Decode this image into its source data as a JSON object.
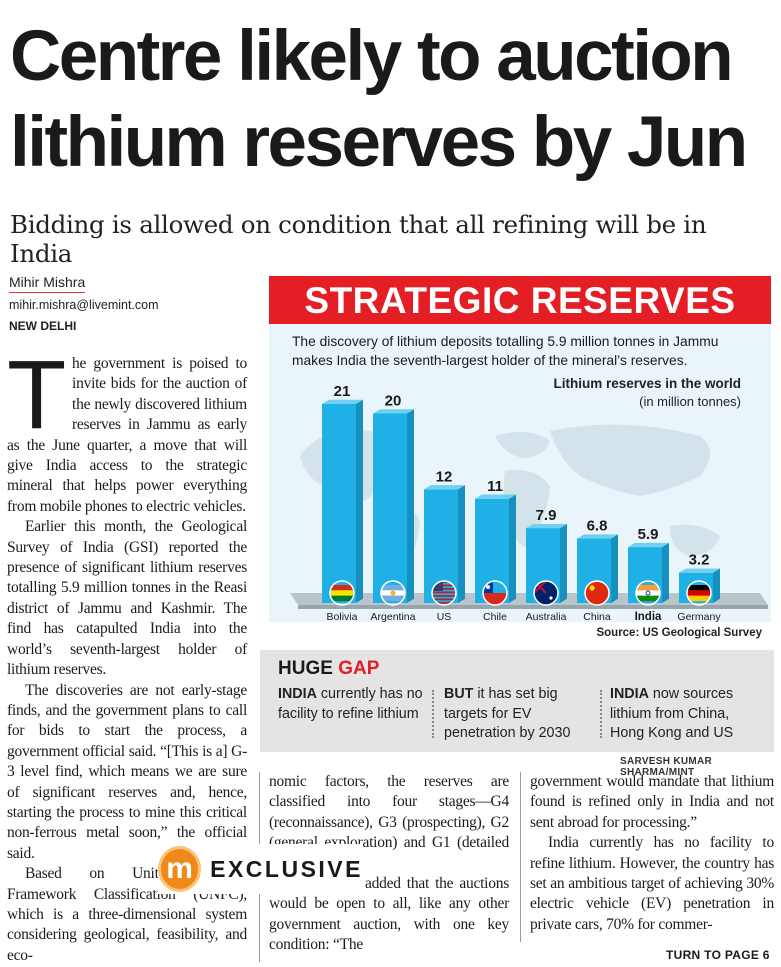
{
  "headline": {
    "line1": "Centre likely to auction",
    "line2": "lithium reserves by Jun"
  },
  "subhead": "Bidding is allowed on condition that all refining will be in India",
  "byline": {
    "name": "Mihir Mishra",
    "email": "mihir.mishra@livemint.com",
    "location": "NEW DELHI"
  },
  "article": {
    "col1_dropcap": "T",
    "col1_p1": "he government is poised to invite bids for the auction of the newly discovered lithium reserves in Jammu as early as the June quarter, a move that will give India access to the strategic mineral that helps power everything from mobile phones to electric vehicles.",
    "col1_p2": "Earlier this month, the Geological Survey of India (GSI) reported the presence of significant lithium reserves totalling 5.9 million tonnes in the Reasi district of Jammu and Kashmir. The find has catapulted India into the world’s seventh-largest holder of lithium reserves.",
    "col1_p3": "The discoveries are not early-stage finds, and the government plans to call for bids to start the process, a government official said. “[This is a] G-3 level find, which means we are sure of significant reserves and, hence, starting the process to mine this critical non-ferrous metal soon,” the official said.",
    "col1_p4": "Based on United Nations Framework Classification (UNFC), which is a three-dimensional system considering geological, feasibility, and eco-",
    "col2_p1": "nomic factors, the reserves are classified into four stages—G4 (reconnaissance), G3 (prospecting), G2 (general exploration) and G1 (detailed exploration).",
    "col2_p2": "The official added that the auctions would be open to all, like any other government auction, with one key condition: “The",
    "col3_p1": "government would mandate that lithium found is refined only in India and not sent abroad for processing.”",
    "col3_p2": "India currently has no facility to refine lithium. However, the country has set an ambitious target of achieving 30% electric vehicle (EV) penetration in private cars, 70% for commer-"
  },
  "exclusive": {
    "logo_letter": "m",
    "label": "EXCLUSIVE"
  },
  "turn_to": "TURN TO PAGE 6",
  "graphic": {
    "banner": "STRATEGIC RESERVES",
    "intro": "The discovery of lithium deposits totalling 5.9 million tonnes in Jammu makes India the seventh-largest holder of the mineral’s reserves.",
    "source": "Source: US Geological Survey",
    "gap_title_a": "HUGE ",
    "gap_title_b": "GAP",
    "gap1_bold": "INDIA",
    "gap1_rest": " currently has no facility to refine lithium",
    "gap2_bold": "BUT",
    "gap2_rest": " it has set big targets for EV penetration by 2030",
    "gap3_bold": "INDIA",
    "gap3_rest": " now sources lithium from China, Hong Kong and US",
    "credit": "SARVESH KUMAR SHARMA/MINT",
    "colors": {
      "banner": "#e31e24",
      "bar": "#1fb0e5",
      "panel": "#e9f5fb",
      "gap_panel": "#e4e4e4"
    }
  },
  "chart_data": {
    "type": "bar",
    "title": "Lithium reserves in the world",
    "ylabel": "(in million tonnes)",
    "categories": [
      "Bolivia",
      "Argentina",
      "US",
      "Chile",
      "Australia",
      "China",
      "India",
      "Germany"
    ],
    "values": [
      21,
      20,
      12,
      11,
      7.9,
      6.8,
      5.9,
      3.2
    ],
    "value_labels": [
      "21",
      "20",
      "12",
      "11",
      "7.9",
      "6.8",
      "5.9",
      "3.2"
    ],
    "highlight": "India",
    "ylim": [
      0,
      21
    ],
    "grid": false,
    "flags": [
      "bolivia-flag-icon",
      "argentina-flag-icon",
      "us-flag-icon",
      "chile-flag-icon",
      "australia-flag-icon",
      "china-flag-icon",
      "india-flag-icon",
      "germany-flag-icon"
    ]
  }
}
